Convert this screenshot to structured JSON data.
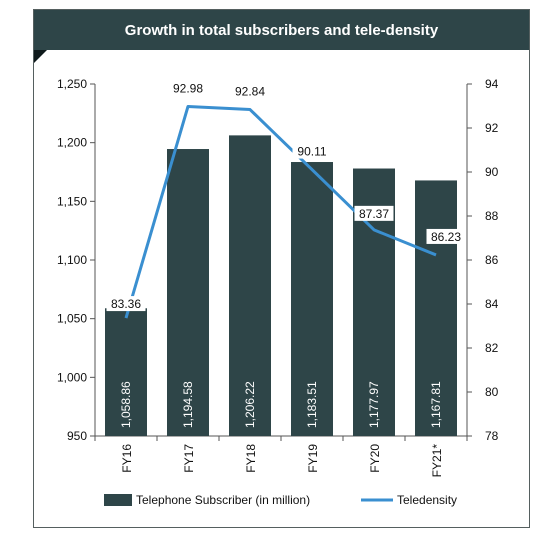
{
  "chart_data": {
    "type": "bar",
    "title": "Growth in total subscribers and tele-density",
    "categories": [
      "FY16",
      "FY17",
      "FY18",
      "FY19",
      "FY20",
      "FY21*"
    ],
    "series": [
      {
        "name": "Telephone Subscriber (in million)",
        "type": "bar",
        "axis": "left",
        "values": [
          1058.86,
          1194.58,
          1206.22,
          1183.51,
          1177.97,
          1167.81
        ],
        "labels": [
          "1,058.86",
          "1,194.58",
          "1,206.22",
          "1,183.51",
          "1,177.97",
          "1,167.81"
        ],
        "color": "#2e4548"
      },
      {
        "name": "Teledensity",
        "type": "line",
        "axis": "right",
        "values": [
          83.36,
          92.98,
          92.84,
          90.11,
          87.37,
          86.23
        ],
        "labels": [
          "83.36",
          "92.98",
          "92.84",
          "90.11",
          "87.37",
          "86.23"
        ],
        "color": "#3a8fd0"
      }
    ],
    "y_left": {
      "min": 950,
      "max": 1250,
      "ticks": [
        "950",
        "1,000",
        "1,050",
        "1,100",
        "1,150",
        "1,200",
        "1,250"
      ]
    },
    "y_right": {
      "min": 78,
      "max": 94,
      "ticks": [
        "78",
        "80",
        "82",
        "84",
        "86",
        "88",
        "90",
        "92",
        "94"
      ]
    },
    "legend_position": "bottom",
    "grid": false
  }
}
